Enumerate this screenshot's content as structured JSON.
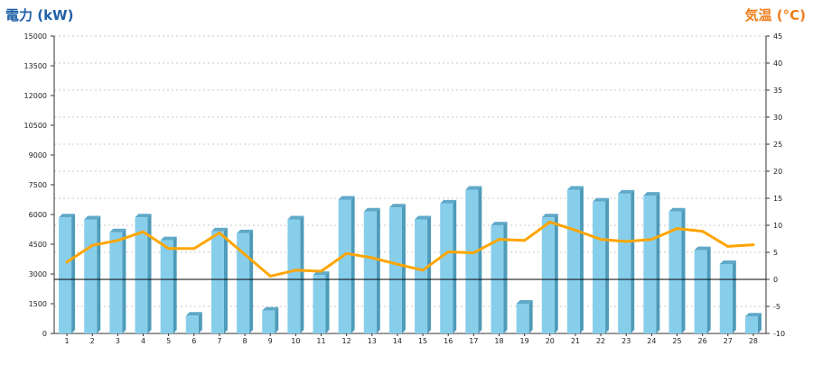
{
  "colors": {
    "bar_front": "#87CEEB",
    "bar_side": "#4E9BBA",
    "bar_top": "#5FA9C9",
    "line": "#FFA500",
    "left_title": "#1F5FA8",
    "right_title": "#F07D1A",
    "grid": "#c8c8c8",
    "axis": "#333333"
  },
  "chart_data": {
    "type": "bar",
    "title": "",
    "ylabel": "電力 (kW)",
    "y2label": "気温 (°C)",
    "ylim": [
      0,
      15000
    ],
    "y2lim": [
      -10,
      45
    ],
    "yticks": [
      0,
      1500,
      3000,
      4500,
      6000,
      7500,
      9000,
      10500,
      12000,
      13500,
      15000
    ],
    "y2ticks": [
      -10,
      -5,
      0,
      5,
      10,
      15,
      20,
      25,
      30,
      35,
      40,
      45
    ],
    "grid": true,
    "legend": "none",
    "categories": [
      "1",
      "2",
      "3",
      "4",
      "5",
      "6",
      "7",
      "8",
      "9",
      "10",
      "11",
      "12",
      "13",
      "14",
      "15",
      "16",
      "17",
      "18",
      "19",
      "20",
      "21",
      "22",
      "23",
      "24",
      "25",
      "26",
      "27",
      "28"
    ],
    "series": [
      {
        "type": "bar",
        "axis": "left",
        "values": [
          5850,
          5750,
          5100,
          5850,
          4700,
          900,
          5150,
          5050,
          1150,
          5750,
          2950,
          6750,
          6150,
          6350,
          5750,
          6550,
          7250,
          5450,
          1500,
          5850,
          7250,
          6650,
          7050,
          6950,
          6150,
          4200,
          3500,
          850
        ]
      },
      {
        "type": "line",
        "axis": "right",
        "values": [
          3.2,
          6.3,
          7.2,
          8.8,
          5.7,
          5.7,
          8.6,
          4.6,
          0.6,
          1.7,
          1.5,
          4.8,
          4.0,
          2.8,
          1.7,
          5.1,
          4.9,
          7.4,
          7.2,
          10.6,
          9.1,
          7.4,
          7.0,
          7.4,
          9.4,
          8.9,
          6.1,
          6.4
        ]
      }
    ]
  }
}
